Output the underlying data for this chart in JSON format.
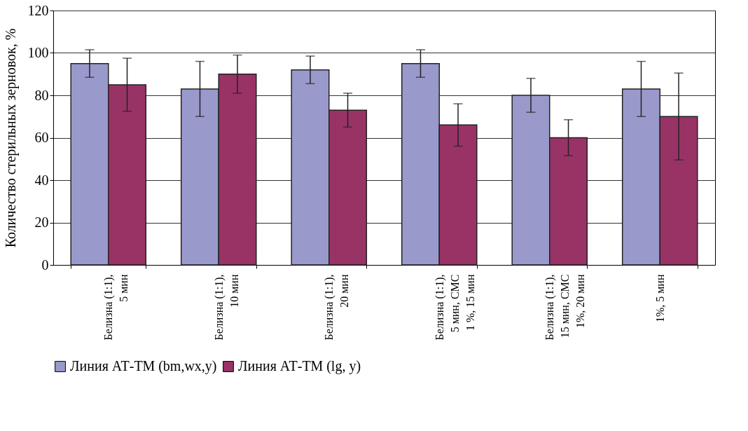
{
  "chart_data": {
    "type": "bar",
    "ylabel": "Количество стерильных зерновок, %",
    "categories": [
      "Белизна (1:1),\n5 мин",
      "Белизна (1:1),\n10 мин",
      "Белизна (1:1),\n20 мин",
      "Белизна (1:1),\n5 мин, СМС\n1 %, 15 мин",
      "Белизна (1:1),\n15 мин, СМС\n1%, 20 мин",
      "1%, 5 мин"
    ],
    "series": [
      {
        "name": "Линия АТ-ТМ (bm,wx,y)",
        "color": "#9999cc",
        "values": [
          95,
          83,
          92,
          95,
          80,
          83
        ],
        "errors": [
          6.5,
          13,
          6.5,
          6.5,
          8,
          13
        ]
      },
      {
        "name": "Линия АТ-ТМ (lg, y)",
        "color": "#993366",
        "values": [
          85,
          90,
          73,
          66,
          60,
          70
        ],
        "errors": [
          12.5,
          9,
          8,
          10,
          8.5,
          20.5
        ]
      }
    ],
    "ylim": [
      0,
      120
    ],
    "yticks": [
      0,
      20,
      40,
      60,
      80,
      100,
      120
    ],
    "grid": "y",
    "legend": "bottom"
  }
}
